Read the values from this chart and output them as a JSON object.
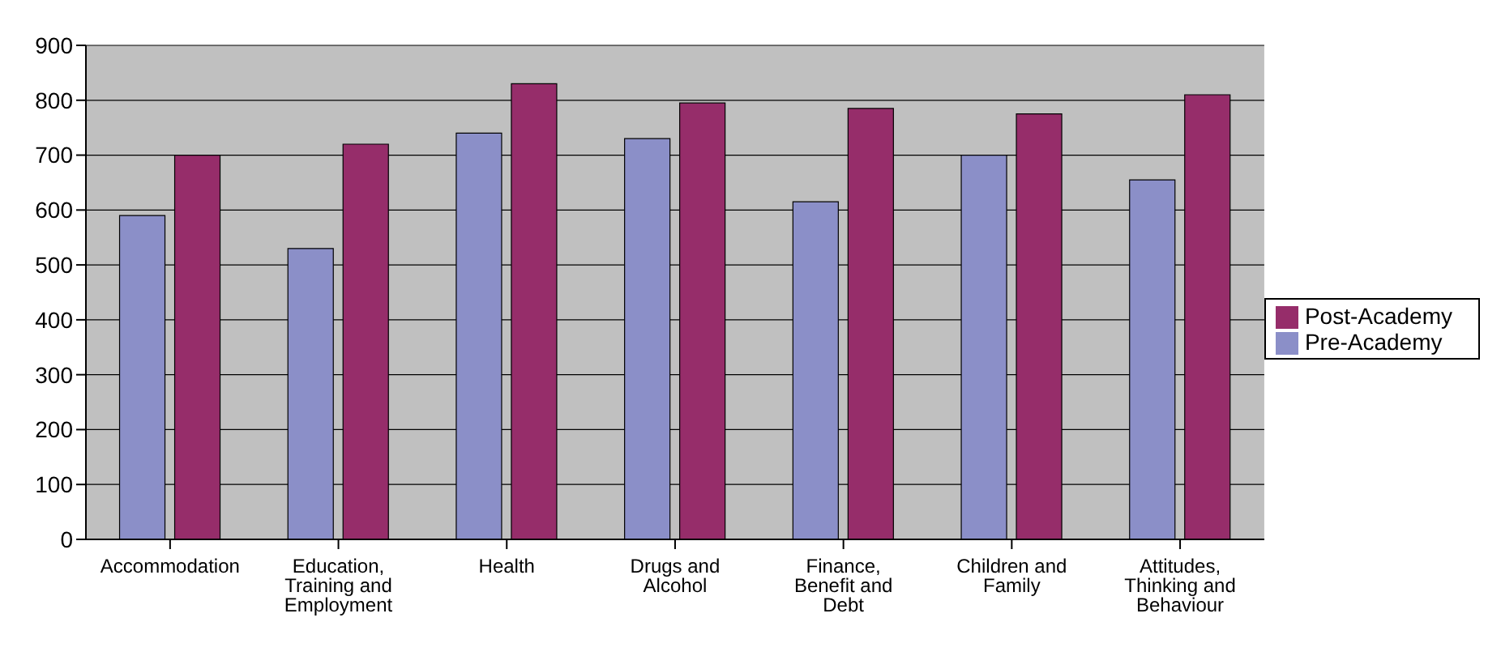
{
  "chart_data": {
    "type": "bar",
    "categories": [
      "Accommodation",
      "Education, Training and Employment",
      "Health",
      "Drugs and Alcohol",
      "Finance, Benefit and Debt",
      "Children and Family",
      "Attitudes, Thinking and Behaviour"
    ],
    "series": [
      {
        "name": "Pre-Academy",
        "color": "#8b8fc8",
        "values": [
          590,
          530,
          740,
          730,
          615,
          700,
          655
        ]
      },
      {
        "name": "Post-Academy",
        "color": "#962d6a",
        "values": [
          700,
          720,
          830,
          795,
          785,
          775,
          810
        ]
      }
    ],
    "ylim": [
      0,
      900
    ],
    "yticks": [
      0,
      100,
      200,
      300,
      400,
      500,
      600,
      700,
      800,
      900
    ],
    "grid": "y",
    "legend": "right"
  }
}
